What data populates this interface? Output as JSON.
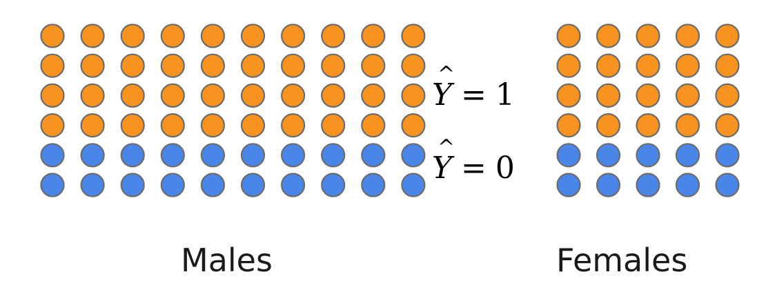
{
  "groups": [
    {
      "id": "males",
      "label": "Males",
      "columns": 10,
      "rows": [
        "positive",
        "positive",
        "positive",
        "positive",
        "negative",
        "negative"
      ]
    },
    {
      "id": "females",
      "label": "Females",
      "columns": 5,
      "rows": [
        "positive",
        "positive",
        "positive",
        "positive",
        "negative",
        "negative"
      ]
    }
  ],
  "labels": {
    "positive": {
      "variable": "Y",
      "equals": "=",
      "value": "1"
    },
    "negative": {
      "variable": "Y",
      "equals": "=",
      "value": "0"
    }
  },
  "colors": {
    "positive": "#f7931e",
    "negative": "#4a86e8",
    "outline": "#6b6b6b"
  }
}
